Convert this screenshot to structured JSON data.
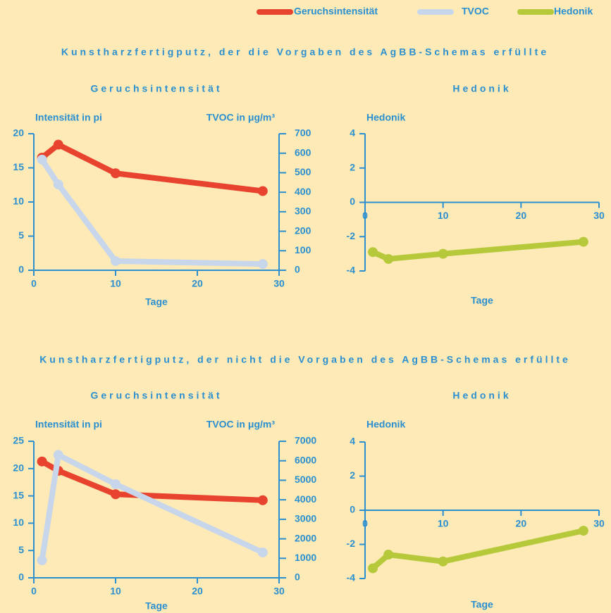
{
  "sections": [
    "Kunstharzfertigputz, der die Vorgaben des AgBB-Schemas erfüllte",
    "Kunstharzfertigputz, der nicht die Vorgaben des AgBB-Schemas erfüllte"
  ],
  "chart_data": [
    {
      "type": "line",
      "title": "Geruchsintensität",
      "xlabel": "Tage",
      "ylabel": "Intensität in pi",
      "y2label": "TVOC in μg/m³",
      "x": [
        1,
        3,
        10,
        28
      ],
      "xlim": [
        0,
        30
      ],
      "xticks": [
        0,
        10,
        20,
        30
      ],
      "ylim": [
        0,
        20
      ],
      "yticks": [
        0,
        5,
        10,
        15,
        20
      ],
      "y2lim": [
        0,
        700
      ],
      "y2ticks": [
        0,
        100,
        200,
        300,
        400,
        500,
        600,
        700
      ],
      "series": [
        {
          "name": "Geruchsintensität",
          "color": "#e8432e",
          "values": [
            16.5,
            18.4,
            14.2,
            11.6
          ]
        },
        {
          "name": "TVOC",
          "color": "#c7d6ea",
          "axis": "y2",
          "values": [
            567,
            440,
            47,
            32
          ]
        }
      ]
    },
    {
      "type": "line",
      "title": "Hedonik",
      "xlabel": "Tage",
      "ylabel": "Hedonik",
      "x": [
        1,
        3,
        10,
        28
      ],
      "xlim": [
        0,
        30
      ],
      "xticks": [
        0,
        10,
        20,
        30
      ],
      "ylim": [
        -4,
        4
      ],
      "yticks": [
        -4,
        -2,
        0,
        2,
        4
      ],
      "series": [
        {
          "name": "Hedonik",
          "color": "#b5c93b",
          "values": [
            -2.9,
            -3.3,
            -3.0,
            -2.3
          ]
        }
      ]
    },
    {
      "type": "line",
      "title": "Geruchsintensität",
      "xlabel": "Tage",
      "ylabel": "Intensität in pi",
      "y2label": "TVOC in μg/m³",
      "x": [
        1,
        3,
        10,
        28
      ],
      "xlim": [
        0,
        30
      ],
      "xticks": [
        0,
        10,
        20,
        30
      ],
      "ylim": [
        0,
        25
      ],
      "yticks": [
        0,
        5,
        10,
        15,
        20,
        25
      ],
      "y2lim": [
        0,
        7000
      ],
      "y2ticks": [
        0,
        1000,
        2000,
        3000,
        4000,
        5000,
        6000,
        7000
      ],
      "series": [
        {
          "color": "#e8432e",
          "values": [
            21.3,
            19.6,
            15.3,
            14.2
          ]
        },
        {
          "color": "#c7d6ea",
          "axis": "y2",
          "values": [
            900,
            6300,
            4800,
            1300
          ]
        }
      ]
    },
    {
      "type": "line",
      "title": "Hedonik",
      "xlabel": "Tage",
      "ylabel": "Hedonik",
      "x": [
        1,
        3,
        10,
        28
      ],
      "xlim": [
        0,
        30
      ],
      "xticks": [
        0,
        10,
        20,
        30
      ],
      "ylim": [
        -4,
        4
      ],
      "yticks": [
        -4,
        -2,
        0,
        2,
        4
      ],
      "series": [
        {
          "color": "#b5c93b",
          "values": [
            -3.4,
            -2.6,
            -3.0,
            -1.2
          ]
        }
      ]
    }
  ]
}
